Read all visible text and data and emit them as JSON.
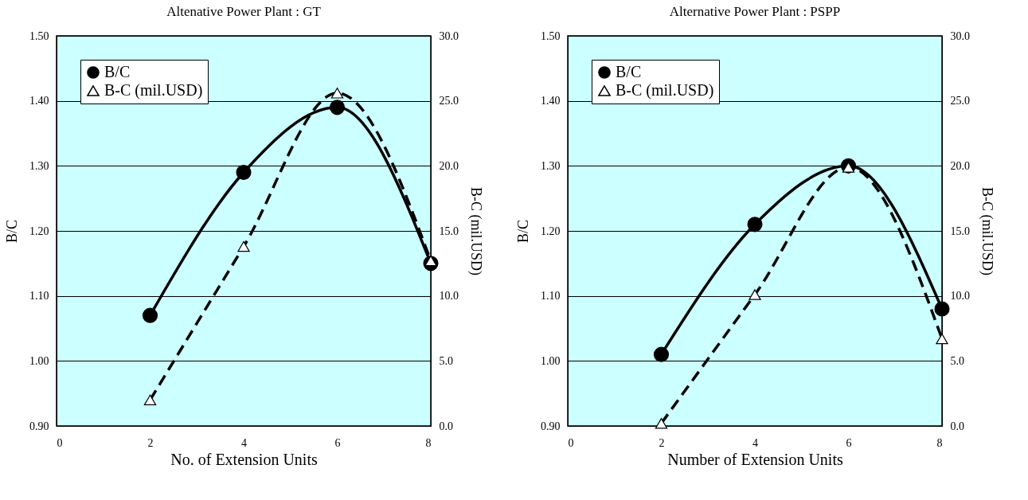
{
  "chart_data": [
    {
      "type": "line",
      "title": "Altenative Power Plant : GT",
      "xlabel": "No. of Extension Units",
      "ylabel": "B/C",
      "y2label": "B-C (mil.USD)",
      "x": [
        2,
        4,
        6,
        8
      ],
      "xlim": [
        0,
        8
      ],
      "xticks": [
        0,
        2,
        4,
        6,
        8
      ],
      "ylim": [
        0.9,
        1.5
      ],
      "yticks": [
        {
          "value": 0.9,
          "label": "0.90"
        },
        {
          "value": 1.0,
          "label": "1.00"
        },
        {
          "value": 1.1,
          "label": "1.10"
        },
        {
          "value": 1.2,
          "label": "1.20"
        },
        {
          "value": 1.3,
          "label": "1.30"
        },
        {
          "value": 1.4,
          "label": "1.40"
        },
        {
          "value": 1.5,
          "label": "1.50"
        }
      ],
      "y2lim": [
        0,
        30
      ],
      "y2ticks": [
        {
          "value": 0,
          "label": "0.0"
        },
        {
          "value": 5,
          "label": "5.0"
        },
        {
          "value": 10,
          "label": "10.0"
        },
        {
          "value": 15,
          "label": "15.0"
        },
        {
          "value": 20,
          "label": "20.0"
        },
        {
          "value": 25,
          "label": "25.0"
        },
        {
          "value": 30,
          "label": "30.0"
        }
      ],
      "grid": "y",
      "legend": "top left",
      "series": [
        {
          "name": "B/C",
          "color": "#000000",
          "values": [
            1.07,
            1.29,
            1.39,
            1.15
          ],
          "marker": "circle",
          "line_style": "solid"
        },
        {
          "name": "B-C (mil.USD)",
          "color": "#000000",
          "values": [
            2.0,
            13.8,
            25.6,
            12.7
          ],
          "marker": "triangle",
          "line_style": "dashed",
          "axis": "y2"
        }
      ]
    },
    {
      "type": "line",
      "title": "Alternative Power Plant : PSPP",
      "xlabel": "Number of Extension Units",
      "ylabel": "B/C",
      "y2label": "B-C (mil.USD)",
      "x": [
        2,
        4,
        6,
        8
      ],
      "xlim": [
        0,
        8
      ],
      "xticks": [
        0,
        2,
        4,
        6,
        8
      ],
      "ylim": [
        0.9,
        1.5
      ],
      "yticks": [
        {
          "value": 0.9,
          "label": "0.90"
        },
        {
          "value": 1.0,
          "label": "1.00"
        },
        {
          "value": 1.1,
          "label": "1.10"
        },
        {
          "value": 1.2,
          "label": "1.20"
        },
        {
          "value": 1.3,
          "label": "1.30"
        },
        {
          "value": 1.4,
          "label": "1.40"
        },
        {
          "value": 1.5,
          "label": "1.50"
        }
      ],
      "y2lim": [
        0,
        30
      ],
      "y2ticks": [
        {
          "value": 0,
          "label": "0.0"
        },
        {
          "value": 5,
          "label": "5.0"
        },
        {
          "value": 10,
          "label": "10.0"
        },
        {
          "value": 15,
          "label": "15.0"
        },
        {
          "value": 20,
          "label": "20.0"
        },
        {
          "value": 25,
          "label": "25.0"
        },
        {
          "value": 30,
          "label": "30.0"
        }
      ],
      "grid": "y",
      "legend": "top left",
      "series": [
        {
          "name": "B/C",
          "color": "#000000",
          "values": [
            1.01,
            1.21,
            1.3,
            1.08
          ],
          "marker": "circle",
          "line_style": "solid"
        },
        {
          "name": "B-C (mil.USD)",
          "color": "#000000",
          "values": [
            0.2,
            10.1,
            19.9,
            6.7
          ],
          "marker": "triangle",
          "line_style": "dashed",
          "axis": "y2"
        }
      ]
    }
  ]
}
